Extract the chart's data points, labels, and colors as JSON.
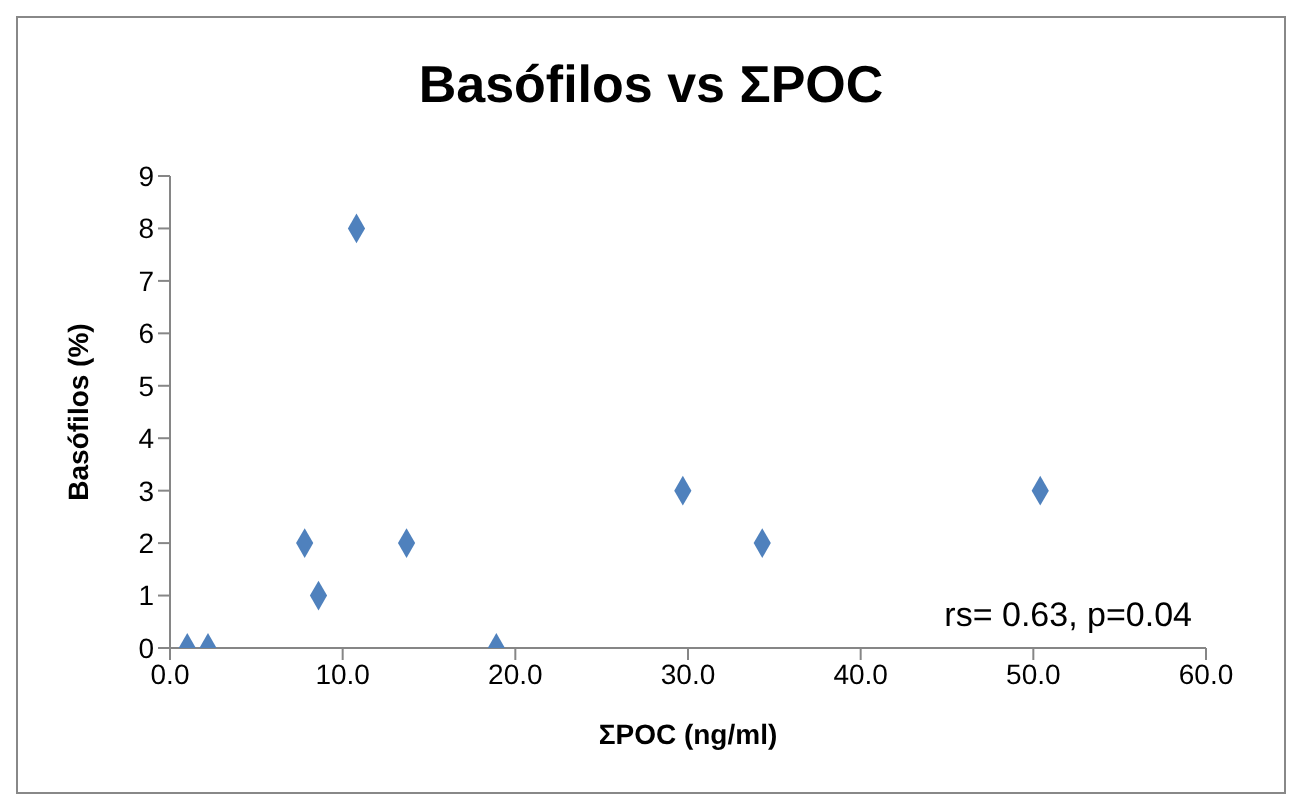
{
  "chart_data": {
    "type": "scatter",
    "title": "Basófilos vs ΣPOC",
    "xlabel": "ΣPOC (ng/ml)",
    "ylabel": "Basófilos (%)",
    "x": [
      1.0,
      2.2,
      10.8,
      7.8,
      8.6,
      13.7,
      18.9,
      29.7,
      34.3,
      50.4
    ],
    "series": [
      {
        "color": "#4f81bd",
        "values": [
          0,
          0,
          8,
          2,
          1,
          2,
          0,
          3,
          2,
          3
        ]
      }
    ],
    "xlim": [
      0,
      60
    ],
    "xticks": [
      {
        "value": 0,
        "label": "0.0"
      },
      {
        "value": 10,
        "label": "10.0"
      },
      {
        "value": 20,
        "label": "20.0"
      },
      {
        "value": 30,
        "label": "30.0"
      },
      {
        "value": 40,
        "label": "40.0"
      },
      {
        "value": 50,
        "label": "50.0"
      },
      {
        "value": 60,
        "label": "60.0"
      }
    ],
    "ylim": [
      0,
      9
    ],
    "yticks": [
      0,
      1,
      2,
      3,
      4,
      5,
      6,
      7,
      8,
      9
    ],
    "marker": "diamond",
    "grid": false,
    "legend": false,
    "annotations": [
      "rs= 0.63, p=0.04"
    ]
  }
}
